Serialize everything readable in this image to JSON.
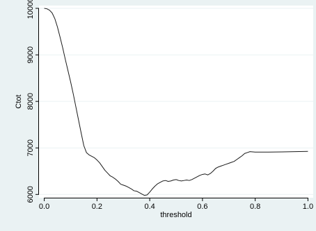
{
  "chart_data": {
    "type": "line",
    "title": "",
    "xlabel": "threshold",
    "ylabel": "Ctot",
    "xlim": [
      -0.02,
      1.02
    ],
    "ylim": [
      5930,
      10060
    ],
    "xticks": [
      0,
      0.2,
      0.4,
      0.6,
      0.8,
      1
    ],
    "xtick_labels": [
      "0.0",
      "0.2",
      "0.4",
      "0.6",
      "0.8",
      "1.0"
    ],
    "yticks": [
      6000,
      7000,
      8000,
      9000,
      10000
    ],
    "ytick_labels": [
      "6000",
      "7000",
      "8000",
      "9000",
      "10000"
    ],
    "grid": true,
    "legend": "none",
    "colors": {
      "background": "#eaf2f3",
      "plot_area": "#ffffff",
      "grid": "#eaf2f3",
      "line": "#1a1a1a"
    },
    "series": [
      {
        "x": [
          0.0,
          0.01,
          0.02,
          0.03,
          0.04,
          0.05,
          0.06,
          0.07,
          0.08,
          0.09,
          0.1,
          0.11,
          0.12,
          0.13,
          0.14,
          0.15,
          0.16,
          0.17,
          0.18,
          0.19,
          0.2,
          0.21,
          0.22,
          0.23,
          0.24,
          0.25,
          0.26,
          0.27,
          0.28,
          0.29,
          0.3,
          0.31,
          0.32,
          0.33,
          0.34,
          0.35,
          0.36,
          0.37,
          0.38,
          0.39,
          0.4,
          0.41,
          0.42,
          0.43,
          0.44,
          0.45,
          0.46,
          0.47,
          0.48,
          0.49,
          0.5,
          0.51,
          0.52,
          0.53,
          0.54,
          0.55,
          0.56,
          0.57,
          0.58,
          0.59,
          0.6,
          0.61,
          0.62,
          0.63,
          0.64,
          0.65,
          0.66,
          0.67,
          0.68,
          0.69,
          0.7,
          0.71,
          0.72,
          0.73,
          0.74,
          0.75,
          0.76,
          0.77,
          0.78,
          0.8,
          0.85,
          0.9,
          0.95,
          1.0
        ],
        "y": [
          10000,
          9990,
          9960,
          9900,
          9780,
          9600,
          9380,
          9150,
          8900,
          8660,
          8420,
          8160,
          7880,
          7600,
          7320,
          7050,
          6900,
          6850,
          6820,
          6790,
          6740,
          6680,
          6600,
          6520,
          6460,
          6400,
          6370,
          6330,
          6280,
          6220,
          6200,
          6180,
          6150,
          6120,
          6080,
          6070,
          6040,
          6010,
          5980,
          5990,
          6050,
          6120,
          6180,
          6230,
          6260,
          6290,
          6300,
          6280,
          6290,
          6310,
          6320,
          6300,
          6290,
          6300,
          6310,
          6300,
          6320,
          6350,
          6380,
          6410,
          6430,
          6440,
          6420,
          6450,
          6500,
          6560,
          6590,
          6610,
          6630,
          6650,
          6670,
          6690,
          6710,
          6750,
          6790,
          6830,
          6880,
          6900,
          6920,
          6910,
          6910,
          6915,
          6920,
          6925
        ]
      }
    ]
  }
}
